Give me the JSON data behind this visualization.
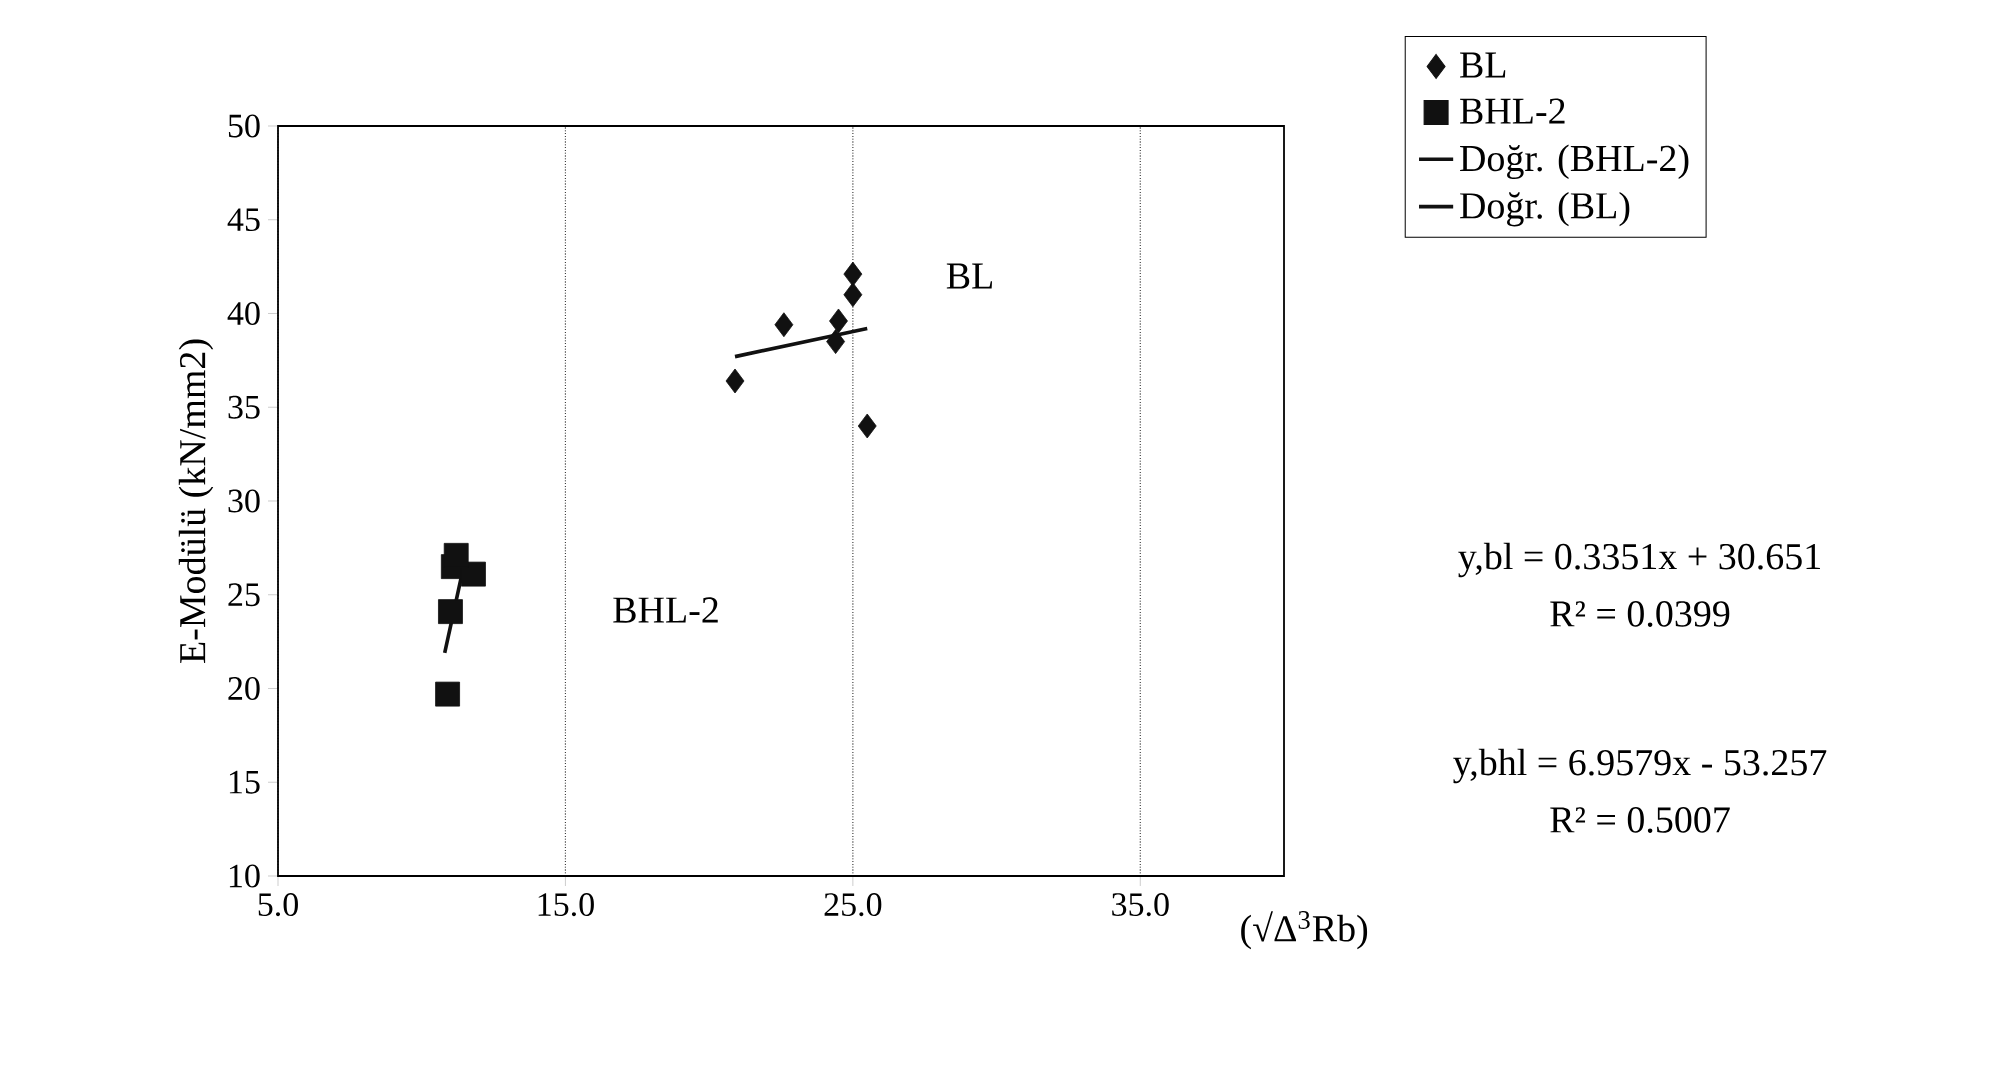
{
  "chart_data": {
    "type": "scatter",
    "ylabel": "E-Modülü (kN/mm2)",
    "xlabel": "(√Δ$^{3}$Rb)",
    "xlim": [
      5,
      40
    ],
    "xticks": [
      {
        "value": 5,
        "label": "5.0"
      },
      {
        "value": 15,
        "label": "15.0"
      },
      {
        "value": 25,
        "label": "25.0"
      },
      {
        "value": 35,
        "label": "35.0"
      }
    ],
    "ylim": [
      10,
      50
    ],
    "yticks": [
      10,
      15,
      20,
      25,
      30,
      35,
      40,
      45,
      50
    ],
    "grid": "x",
    "legend": "top right",
    "series": [
      {
        "name": "BL",
        "marker": "diamond",
        "color": "#111111",
        "x": [
          20.9,
          22.6,
          24.5,
          24.4,
          25.0,
          25.0,
          25.5
        ],
        "values": [
          36.4,
          39.4,
          39.6,
          38.5,
          42.1,
          41.0,
          34.0
        ]
      },
      {
        "name": "BHL-2",
        "marker": "square",
        "color": "#111111",
        "x": [
          10.9,
          11.0,
          11.1,
          11.8,
          11.2
        ],
        "values": [
          19.7,
          24.1,
          26.5,
          26.1,
          27.1
        ]
      },
      {
        "name": "Doğr. (BHL-2)",
        "type": "line",
        "marker": "none",
        "line_style": "solid",
        "color": "#111111",
        "x": [
          10.8,
          11.5
        ],
        "values": [
          21.9,
          26.8
        ]
      },
      {
        "name": "Doğr. (BL)",
        "type": "line",
        "marker": "none",
        "line_style": "solid",
        "color": "#111111",
        "x": [
          20.9,
          25.5
        ],
        "values": [
          37.7,
          39.2
        ]
      }
    ],
    "annotations": [
      "BL",
      "BHL-2",
      "y,bl = 0.3351x + 30.651",
      "R² = 0.0399",
      "y,bhl = 6.9579x - 53.257",
      "R² = 0.5007"
    ]
  }
}
